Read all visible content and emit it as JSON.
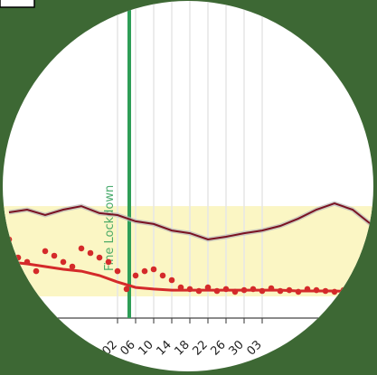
{
  "chart_data": {
    "type": "line",
    "xlim": [
      0,
      40
    ],
    "ylim": [
      0,
      100
    ],
    "grid": true,
    "xticks": [
      {
        "value": 12,
        "label": "02"
      },
      {
        "value": 14,
        "label": "06"
      },
      {
        "value": 16,
        "label": "10"
      },
      {
        "value": 18,
        "label": "14"
      },
      {
        "value": 20,
        "label": "18"
      },
      {
        "value": 22,
        "label": "22"
      },
      {
        "value": 24,
        "label": "26"
      },
      {
        "value": 26,
        "label": "30"
      },
      {
        "value": 28,
        "label": "03"
      }
    ],
    "band": {
      "ymin": 8,
      "ymax": 41.3,
      "color": "#fbf6c4"
    },
    "annotation": {
      "text": "Fine Lockdown",
      "x": 13.3,
      "color": "#2e9e57"
    },
    "series": [
      {
        "type": "line",
        "color": "#7a1222",
        "x": [
          0,
          2,
          4,
          6,
          8,
          10,
          12,
          14,
          16,
          18,
          20,
          22,
          24,
          26,
          28,
          30,
          32,
          34,
          36,
          38,
          40
        ],
        "values": [
          39,
          40,
          38,
          40,
          41.3,
          38.7,
          38,
          35.7,
          34.7,
          32.3,
          31.3,
          29,
          30,
          31.3,
          32.3,
          34,
          36.7,
          40,
          42.3,
          40,
          34.7
        ]
      },
      {
        "type": "line",
        "color": "#d42a2a",
        "x": [
          0,
          2,
          4,
          6,
          8,
          10,
          12,
          14,
          16,
          18,
          20,
          22,
          24,
          26,
          28,
          30,
          32,
          34,
          36,
          38,
          40
        ],
        "values": [
          20.7,
          20,
          19,
          18,
          17.3,
          15.7,
          13.3,
          11.3,
          10.7,
          10.3,
          10.3,
          10.3,
          10.3,
          10.3,
          10.3,
          10.3,
          10,
          10,
          10,
          9.7,
          9.7
        ]
      },
      {
        "type": "scatter",
        "color": "#d42a2a",
        "x": [
          0,
          1,
          2,
          3,
          4,
          5,
          6,
          7,
          8,
          9,
          10,
          11,
          12,
          13,
          14,
          15,
          16,
          17,
          18,
          19,
          20,
          21,
          22,
          23,
          24,
          25,
          26,
          27,
          28,
          29,
          30,
          31,
          32,
          33,
          34,
          35,
          36,
          37,
          38,
          39,
          40
        ],
        "values": [
          29,
          22.3,
          20.7,
          17.3,
          24.7,
          23,
          20.7,
          19,
          25.7,
          24,
          22.3,
          20.7,
          17.3,
          10.7,
          15.7,
          17.3,
          18,
          15.7,
          14,
          11.3,
          10.7,
          10,
          11.3,
          10,
          10.7,
          9.7,
          10.3,
          10.7,
          10,
          11,
          10,
          10.3,
          9.7,
          10.7,
          10.3,
          10,
          9.7,
          10.3,
          10,
          9.7,
          10
        ]
      }
    ]
  }
}
